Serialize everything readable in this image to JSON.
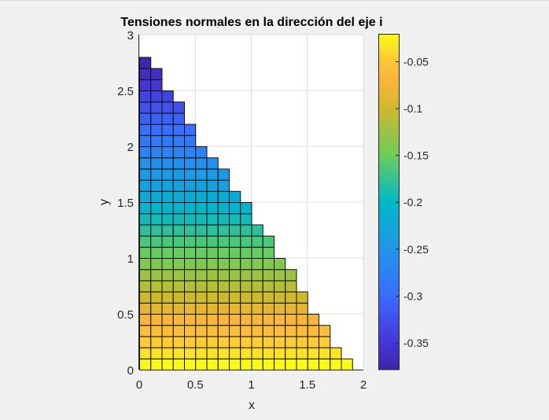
{
  "chart_data": {
    "type": "heatmap",
    "title": "Tensiones normales en la dirección del eje i",
    "xlabel": "x",
    "ylabel": "y",
    "xlim": [
      0,
      2
    ],
    "ylim": [
      0,
      3
    ],
    "xticks": [
      "0",
      "0.5",
      "1",
      "1.5",
      "2"
    ],
    "xtick_values": [
      0,
      0.5,
      1,
      1.5,
      2
    ],
    "yticks": [
      "0",
      "0.5",
      "1",
      "1.5",
      "2",
      "2.5",
      "3"
    ],
    "ytick_values": [
      0,
      0.5,
      1,
      1.5,
      2,
      2.5,
      3
    ],
    "grid": true,
    "cell_size": 0.1,
    "cells_per_row_from_bottom": [
      19,
      18,
      17,
      17,
      16,
      15,
      15,
      14,
      14,
      13,
      12,
      12,
      11,
      10,
      10,
      9,
      8,
      8,
      7,
      6,
      5,
      5,
      4,
      4,
      3,
      2,
      2,
      1
    ],
    "row_value_bottom": -0.021,
    "row_value_top": -0.376,
    "colormap": "parula",
    "colorbar": {
      "limits": [
        -0.3786,
        -0.0206
      ],
      "ticks": [
        "-0.05",
        "-0.1",
        "-0.15",
        "-0.2",
        "-0.25",
        "-0.3",
        "-0.35"
      ],
      "tick_values": [
        -0.05,
        -0.1,
        -0.15,
        -0.2,
        -0.25,
        -0.3,
        -0.35
      ],
      "location": "right"
    }
  }
}
